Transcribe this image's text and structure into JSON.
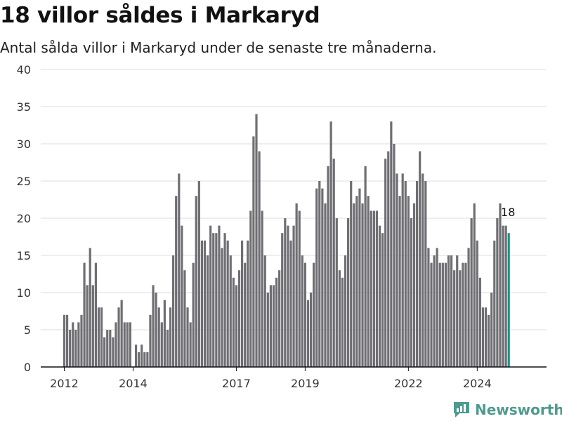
{
  "title": "18 villor såldes i Markaryd",
  "subtitle": "Antal sålda villor i Markaryd under de senaste tre månaderna.",
  "brand": {
    "name": "Newsworthy",
    "color": "#4e9a8e"
  },
  "colors": {
    "bar": "#6f6e73",
    "highlight": "#17968c",
    "grid": "#dddddd",
    "axis": "#111111"
  },
  "chart_data": {
    "type": "bar",
    "x_start": "2012-01",
    "x_ticks": [
      "2012",
      "2014",
      "2017",
      "2019",
      "2022",
      "2024"
    ],
    "ylim": [
      0,
      40
    ],
    "y_ticks": [
      0,
      5,
      10,
      15,
      20,
      25,
      30,
      35,
      40
    ],
    "grid": true,
    "values": [
      7,
      7,
      5,
      6,
      5,
      6,
      7,
      14,
      11,
      16,
      11,
      14,
      8,
      8,
      4,
      5,
      5,
      4,
      6,
      8,
      9,
      6,
      6,
      6,
      0,
      3,
      2,
      3,
      2,
      2,
      7,
      11,
      10,
      8,
      6,
      9,
      5,
      8,
      15,
      23,
      26,
      19,
      13,
      8,
      6,
      14,
      23,
      25,
      17,
      17,
      15,
      19,
      18,
      18,
      19,
      16,
      18,
      17,
      15,
      12,
      11,
      13,
      17,
      14,
      17,
      21,
      31,
      34,
      29,
      21,
      15,
      10,
      11,
      11,
      12,
      13,
      18,
      20,
      19,
      17,
      19,
      22,
      21,
      15,
      14,
      9,
      10,
      14,
      24,
      25,
      24,
      22,
      27,
      33,
      28,
      20,
      13,
      12,
      15,
      20,
      25,
      22,
      23,
      24,
      22,
      27,
      23,
      21,
      21,
      21,
      19,
      18,
      28,
      29,
      33,
      30,
      26,
      23,
      26,
      25,
      23,
      20,
      22,
      25,
      29,
      26,
      25,
      16,
      14,
      15,
      16,
      14,
      14,
      14,
      15,
      15,
      13,
      15,
      13,
      14,
      14,
      16,
      20,
      22,
      17,
      12,
      8,
      8,
      7,
      10,
      17,
      20,
      22,
      19,
      19,
      18
    ],
    "highlight_last": true,
    "last_value_label": "18"
  }
}
